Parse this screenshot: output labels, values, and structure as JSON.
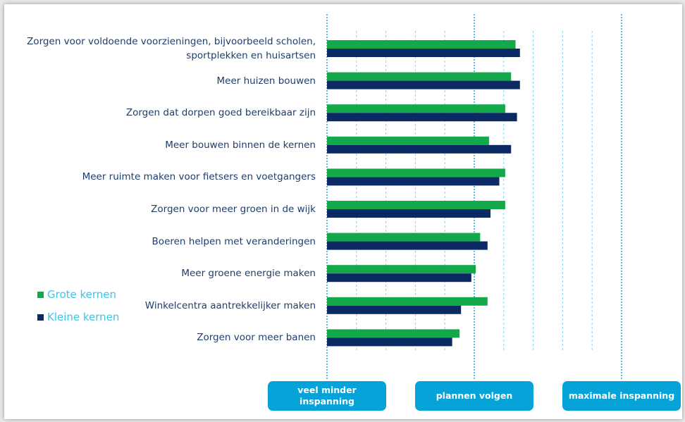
{
  "chart_data": {
    "type": "hbar",
    "categories": [
      "Zorgen voor voldoende voorzieningen, bijvoorbeeld scholen, sportplekken en huisartsen",
      "Meer huizen bouwen",
      "Zorgen dat dorpen goed bereikbaar zijn",
      "Meer bouwen binnen de kernen",
      "Meer ruimte maken voor fietsers en voetgangers",
      "Zorgen voor meer groen in de wijk",
      "Boeren helpen met veranderingen",
      "Meer groene energie maken",
      "Winkelcentra aantrekkelijker maken",
      "Zorgen voor meer banen"
    ],
    "series": [
      {
        "name": "Grote kernen",
        "color": "#13a84a",
        "values": [
          2.28,
          2.25,
          2.21,
          2.1,
          2.21,
          2.21,
          2.04,
          2.01,
          2.09,
          1.9
        ]
      },
      {
        "name": "Kleine kernen",
        "color": "#0b2a63",
        "values": [
          2.31,
          2.31,
          2.29,
          2.25,
          2.17,
          2.11,
          2.09,
          1.98,
          1.91,
          1.85
        ]
      }
    ],
    "xlim": [
      1,
      3
    ],
    "xticks": [
      {
        "value": 1,
        "label": "veel minder inspanning"
      },
      {
        "value": 2,
        "label": "plannen volgen"
      },
      {
        "value": 3,
        "label": "maximale inspanning"
      }
    ],
    "minor_xticks": [
      1.2,
      1.4,
      1.6,
      1.8,
      2.2,
      2.4,
      2.6,
      2.8
    ],
    "grid": true
  }
}
